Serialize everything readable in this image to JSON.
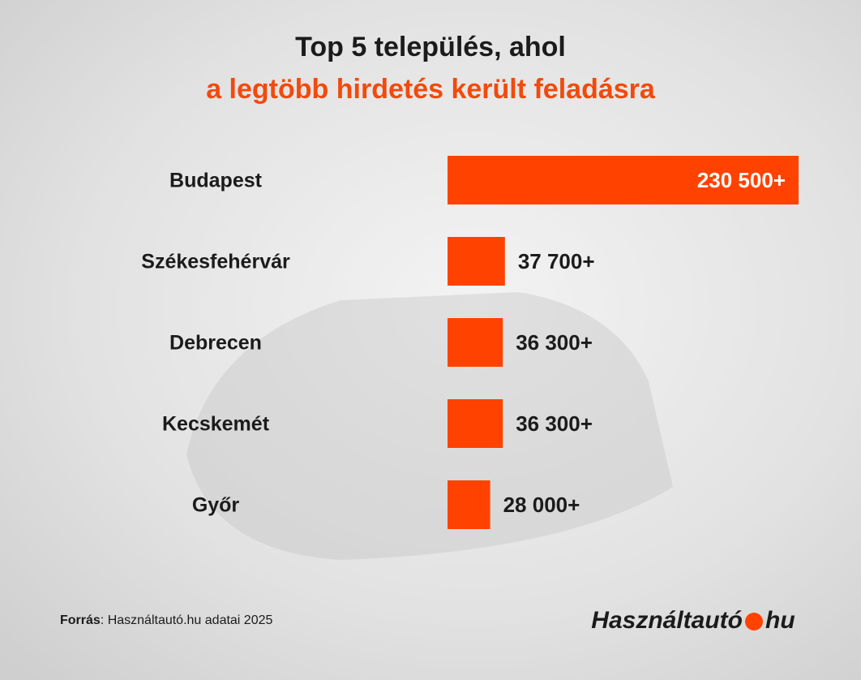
{
  "chart_data": {
    "type": "bar",
    "orientation": "horizontal",
    "title": "Top 5 település, ahol",
    "subtitle": "a legtöbb hirdetés került feladásra",
    "categories": [
      "Budapest",
      "Székesfehérvár",
      "Debrecen",
      "Kecskemét",
      "Győr"
    ],
    "values": [
      230500,
      37700,
      36300,
      36300,
      28000
    ],
    "value_labels": [
      "230 500+",
      "37 700+",
      "36 300+",
      "36 300+",
      "28 000+"
    ],
    "color": "#ff4200"
  },
  "footer": {
    "source_label": "Forrás",
    "source_text": ": Használtautó.hu adatai 2025",
    "logo_left": "Használtautó",
    "logo_right": "hu"
  }
}
